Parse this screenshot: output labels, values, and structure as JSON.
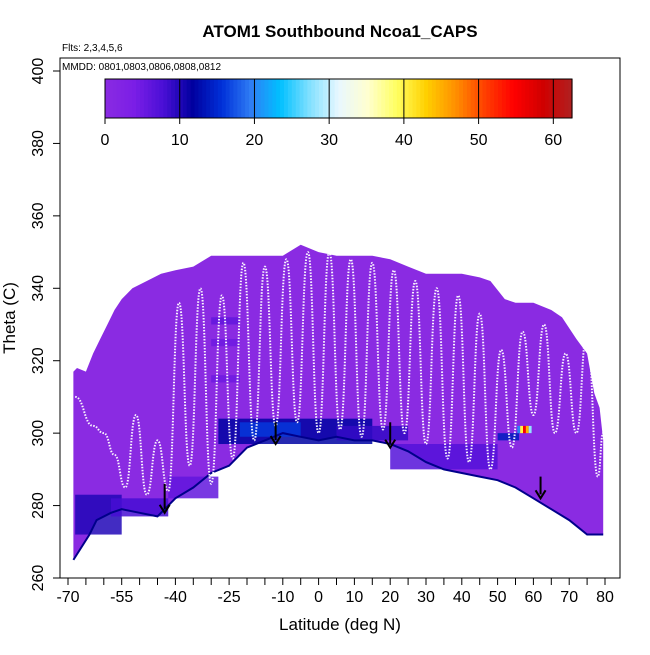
{
  "chart_data": {
    "type": "heatmap",
    "title": "ATOM1 Southbound Ncoa1_CAPS",
    "xlabel": "Latitude (deg N)",
    "ylabel": "Theta (C)",
    "xlim": [
      -70,
      85
    ],
    "ylim": [
      260,
      405
    ],
    "x_tick_values": [
      -70,
      -55,
      -40,
      -25,
      -10,
      0,
      10,
      20,
      30,
      40,
      50,
      60,
      70,
      80
    ],
    "x_tick_labels": [
      "-70",
      "-55",
      "-40",
      "-25",
      "-10",
      "0",
      "10",
      "20",
      "30",
      "40",
      "50",
      "60",
      "70",
      "80"
    ],
    "x_minor_ticks": [
      -65,
      -60,
      -50,
      -45,
      -35,
      -30,
      -20,
      -15,
      -5,
      5,
      15,
      25,
      35,
      45,
      55,
      65,
      75,
      85
    ],
    "y_tick_values": [
      260,
      280,
      300,
      320,
      340,
      360,
      380,
      400
    ],
    "y_tick_labels": [
      "260",
      "280",
      "300",
      "320",
      "340",
      "360",
      "380",
      "400"
    ],
    "annotations": [
      "Flts: 2,3,4,5,6",
      "MMDD: 0801,0803,0806,0808,0812"
    ],
    "colorbar": {
      "ticks": [
        0,
        10,
        20,
        30,
        40,
        50,
        60
      ],
      "labels": [
        "0",
        "10",
        "20",
        "30",
        "40",
        "50",
        "60"
      ],
      "range": [
        0,
        62.5
      ],
      "colors": [
        "#8a2be2",
        "#7b1ee6",
        "#4a0fd6",
        "#00009f",
        "#0030d8",
        "#2f7df5",
        "#00c0ff",
        "#80e0ff",
        "#e8f8ff",
        "#ffffd0",
        "#ffff60",
        "#ffd000",
        "#ff9000",
        "#ff4000",
        "#ff0000",
        "#d00000",
        "#b02020"
      ]
    },
    "field_background_color": "#8a2be2",
    "boundary_top": [
      [
        -68.5,
        317
      ],
      [
        -67.5,
        318
      ],
      [
        -65,
        317
      ],
      [
        -63,
        322
      ],
      [
        -61,
        326
      ],
      [
        -59,
        330
      ],
      [
        -57,
        334
      ],
      [
        -55,
        337
      ],
      [
        -52,
        340
      ],
      [
        -48,
        342
      ],
      [
        -44,
        344
      ],
      [
        -40,
        345
      ],
      [
        -35,
        346
      ],
      [
        -30,
        349
      ],
      [
        -20,
        349
      ],
      [
        -10,
        349
      ],
      [
        -5,
        352
      ],
      [
        0,
        350
      ],
      [
        5,
        349
      ],
      [
        15,
        349
      ],
      [
        20,
        348
      ],
      [
        25,
        346
      ],
      [
        30,
        344
      ],
      [
        40,
        344
      ],
      [
        45,
        343
      ],
      [
        48,
        342
      ],
      [
        52,
        337
      ],
      [
        55,
        336
      ],
      [
        60,
        336
      ],
      [
        65,
        334
      ],
      [
        68,
        332
      ],
      [
        72,
        326
      ],
      [
        75,
        322
      ],
      [
        77,
        311
      ],
      [
        78.5,
        307
      ],
      [
        79.5,
        298
      ]
    ],
    "boundary_bottom": [
      [
        -68.5,
        265
      ],
      [
        -64,
        272
      ],
      [
        -62,
        276
      ],
      [
        -58,
        278
      ],
      [
        -55,
        279
      ],
      [
        -50,
        278
      ],
      [
        -45,
        277
      ],
      [
        -40,
        282
      ],
      [
        -35,
        285
      ],
      [
        -30,
        289
      ],
      [
        -25,
        291
      ],
      [
        -20,
        296
      ],
      [
        -15,
        298
      ],
      [
        -10,
        300
      ],
      [
        -5,
        299
      ],
      [
        0,
        298
      ],
      [
        5,
        299
      ],
      [
        10,
        298
      ],
      [
        15,
        298
      ],
      [
        20,
        297
      ],
      [
        25,
        295
      ],
      [
        30,
        292
      ],
      [
        35,
        290
      ],
      [
        40,
        289
      ],
      [
        45,
        288
      ],
      [
        50,
        287
      ],
      [
        55,
        285
      ],
      [
        60,
        282
      ],
      [
        65,
        279
      ],
      [
        70,
        276
      ],
      [
        75,
        272
      ],
      [
        79.5,
        272
      ]
    ],
    "high_value_bands": [
      {
        "x": [
          -68,
          -55
        ],
        "y": [
          272,
          283
        ],
        "value": 10
      },
      {
        "x": [
          -58,
          -42
        ],
        "y": [
          277,
          282
        ],
        "value": 8
      },
      {
        "x": [
          -42,
          -28
        ],
        "y": [
          282,
          288
        ],
        "value": 6
      },
      {
        "x": [
          -28,
          15
        ],
        "y": [
          297,
          304
        ],
        "value": 12
      },
      {
        "x": [
          -22,
          -5
        ],
        "y": [
          299,
          303
        ],
        "value": 16
      },
      {
        "x": [
          5,
          25
        ],
        "y": [
          298,
          302
        ],
        "value": 9
      },
      {
        "x": [
          20,
          50
        ],
        "y": [
          290,
          297
        ],
        "value": 7
      },
      {
        "x": [
          -30,
          -22
        ],
        "y": [
          330,
          332
        ],
        "value": 6
      },
      {
        "x": [
          -30,
          -22
        ],
        "y": [
          324,
          326
        ],
        "value": 5
      },
      {
        "x": [
          -30,
          -22
        ],
        "y": [
          314,
          316
        ],
        "value": 5
      },
      {
        "x": [
          50,
          56
        ],
        "y": [
          298,
          300
        ],
        "value": 14
      }
    ],
    "hotspot": {
      "x": [
        55.5,
        59.5
      ],
      "y": [
        300,
        302
      ],
      "values": [
        20,
        40,
        55,
        45,
        28
      ]
    },
    "arrows": [
      {
        "x": -43,
        "y_top": 286,
        "y_tip": 278
      },
      {
        "x": -12,
        "y_top": 303,
        "y_tip": 297
      },
      {
        "x": 20,
        "y_top": 303,
        "y_tip": 296
      },
      {
        "x": 62,
        "y_top": 288,
        "y_tip": 282
      }
    ],
    "curve_control_points": [
      [
        -68,
        310
      ],
      [
        -63,
        302
      ],
      [
        -60,
        300
      ],
      [
        -57,
        294
      ],
      [
        -54,
        285
      ],
      [
        -51,
        305
      ],
      [
        -48,
        283
      ],
      [
        -45,
        298
      ],
      [
        -42,
        284
      ],
      [
        -39,
        336
      ],
      [
        -36,
        291
      ],
      [
        -33,
        340
      ],
      [
        -30,
        286
      ],
      [
        -27,
        338
      ],
      [
        -24,
        293
      ],
      [
        -21,
        347
      ],
      [
        -18,
        298
      ],
      [
        -15,
        346
      ],
      [
        -12,
        302
      ],
      [
        -9,
        348
      ],
      [
        -6,
        303
      ],
      [
        -3,
        350
      ],
      [
        0,
        300
      ],
      [
        3,
        350
      ],
      [
        6,
        301
      ],
      [
        9,
        348
      ],
      [
        12,
        299
      ],
      [
        15,
        347
      ],
      [
        18,
        301
      ],
      [
        21,
        345
      ],
      [
        24,
        300
      ],
      [
        27,
        342
      ],
      [
        30,
        297
      ],
      [
        33,
        340
      ],
      [
        36,
        293
      ],
      [
        39,
        338
      ],
      [
        42,
        292
      ],
      [
        45,
        333
      ],
      [
        48,
        290
      ],
      [
        51,
        323
      ],
      [
        54,
        296
      ],
      [
        57,
        328
      ],
      [
        60,
        305
      ],
      [
        63,
        330
      ],
      [
        66,
        300
      ],
      [
        69,
        322
      ],
      [
        72,
        300
      ],
      [
        75,
        328
      ],
      [
        78,
        288
      ],
      [
        79.5,
        300
      ]
    ]
  }
}
